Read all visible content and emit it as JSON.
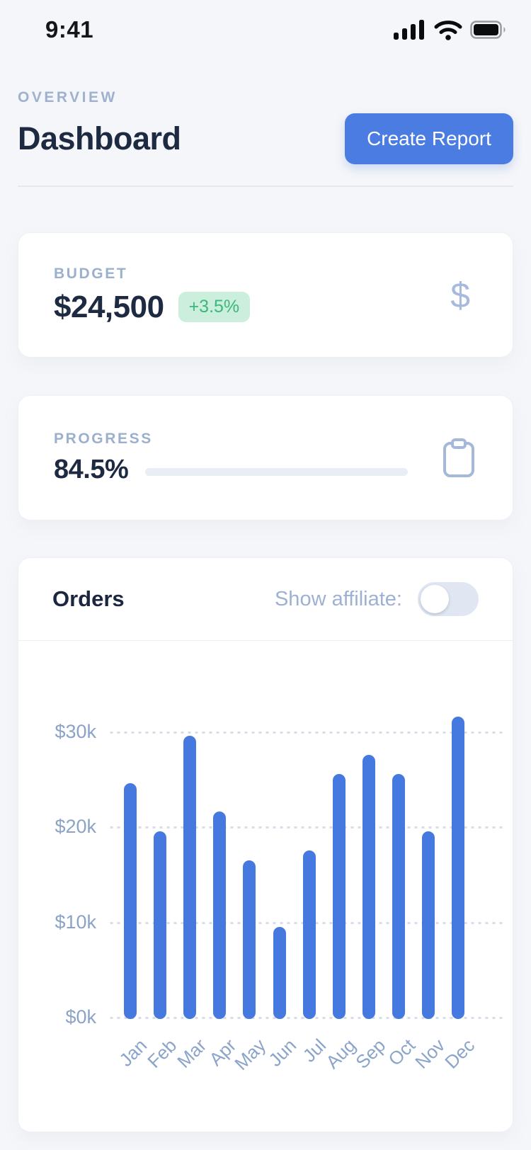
{
  "status_bar": {
    "time": "9:41",
    "icons": [
      "cellular-signal-icon",
      "wifi-icon",
      "battery-icon"
    ]
  },
  "header": {
    "eyebrow": "OVERVIEW",
    "title": "Dashboard",
    "create_report_label": "Create Report"
  },
  "budget_card": {
    "label": "BUDGET",
    "value": "$24,500",
    "change_badge": "+3.5%",
    "icon": "dollar-sign",
    "icon_glyph": "$"
  },
  "progress_card": {
    "label": "PROGRESS",
    "value": "84.5%",
    "progress_percent": 84.5,
    "icon": "clipboard"
  },
  "orders_card": {
    "title": "Orders",
    "toggle_label": "Show affiliate:",
    "toggle_state": "off"
  },
  "colors": {
    "accent_blue": "#4a7ce2",
    "bar_blue": "#4679e0",
    "badge_green_text": "#3bb87b",
    "badge_green_bg": "#cceedd",
    "muted_label": "#9cb0ce",
    "dark_navy": "#1d2a41",
    "background": "#f5f6f9"
  },
  "chart_data": {
    "type": "bar",
    "title": "Orders",
    "categories": [
      "Jan",
      "Feb",
      "Mar",
      "Apr",
      "May",
      "Jun",
      "Jul",
      "Aug",
      "Sep",
      "Oct",
      "Nov",
      "Dec"
    ],
    "values": [
      24.8,
      19.7,
      29.8,
      21.8,
      16.7,
      9.7,
      17.7,
      25.8,
      27.8,
      25.8,
      19.7,
      31.8
    ],
    "unit": "thousand USD",
    "xlabel": "",
    "ylabel": "",
    "yticks": [
      0,
      10,
      20,
      30
    ],
    "ytick_labels": [
      "$0k",
      "$10k",
      "$20k",
      "$30k"
    ],
    "ylim": [
      0,
      35
    ],
    "grid": "horizontal-dotted",
    "legend": "none",
    "bar_color": "#4679e0"
  }
}
